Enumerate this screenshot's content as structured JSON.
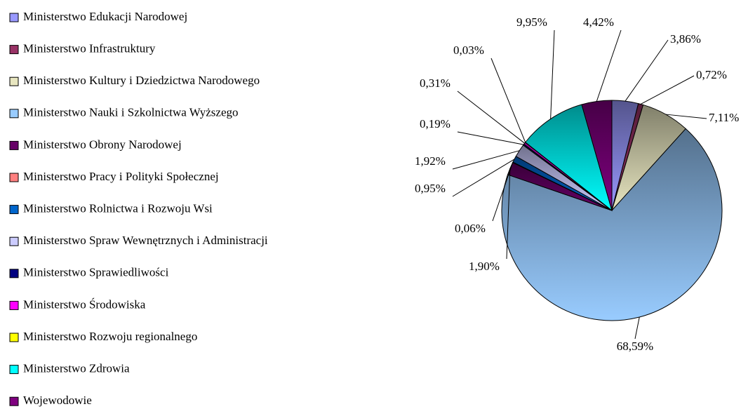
{
  "chart_data": {
    "type": "pie",
    "categories": [
      "Ministerstwo Edukacji Narodowej",
      "Ministerstwo Infrastruktury",
      "Ministerstwo Kultury i Dziedzictwa Narodowego",
      "Ministerstwo Nauki i Szkolnictwa Wyższego",
      "Ministerstwo Obrony Narodowej",
      "Ministerstwo Pracy i Polityki Społecznej",
      "Ministerstwo Rolnictwa i Rozwoju Wsi",
      "Ministerstwo Spraw Wewnętrznych i Administracji",
      "Ministerstwo Sprawiedliwości",
      "Ministerstwo Środowiska",
      "Ministerstwo Rozwoju regionalnego",
      "Ministerstwo Zdrowia",
      "Wojewodowie"
    ],
    "values": [
      3.86,
      0.72,
      7.11,
      68.59,
      1.9,
      0.06,
      0.95,
      1.92,
      0.19,
      0.31,
      0.03,
      9.95,
      4.42
    ],
    "value_labels": [
      "3,86%",
      "0,72%",
      "7,11%",
      "68,59%",
      "1,90%",
      "0,06%",
      "0,95%",
      "1,92%",
      "0,19%",
      "0,31%",
      "0,03%",
      "9,95%",
      "4,42%"
    ],
    "colors": [
      "#9999ff",
      "#993366",
      "#e8e6c0",
      "#99ccff",
      "#660066",
      "#ff8080",
      "#0066cc",
      "#ccccff",
      "#000080",
      "#ff00ff",
      "#ffff00",
      "#00ffff",
      "#800080"
    ],
    "legend": "left"
  }
}
